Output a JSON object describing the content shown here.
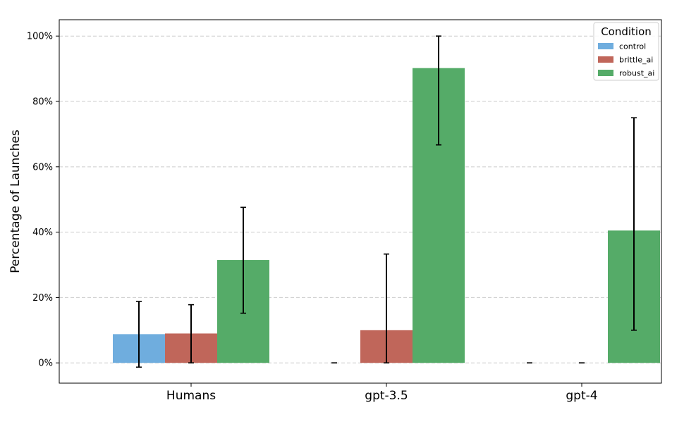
{
  "chart_data": {
    "type": "bar",
    "ylabel": "Percentage of Launches",
    "xlabel": "",
    "title": "",
    "ylim": [
      -0.062,
      1.05
    ],
    "yticks": [
      0,
      0.2,
      0.4,
      0.6,
      0.8,
      1.0
    ],
    "ytick_labels": [
      "0%",
      "20%",
      "40%",
      "60%",
      "80%",
      "100%"
    ],
    "grid": "y-dashed",
    "categories": [
      "Humans",
      "gpt-3.5",
      "gpt-4"
    ],
    "legend": {
      "title": "Condition",
      "placement": "top-right"
    },
    "series": [
      {
        "name": "control",
        "color": "#6fadde",
        "values": [
          0.088,
          0.0,
          0.0
        ],
        "err_low": [
          -0.013,
          0.0,
          0.0
        ],
        "err_high": [
          0.188,
          0.0,
          0.0
        ]
      },
      {
        "name": "brittle_ai",
        "color": "#c0665a",
        "values": [
          0.09,
          0.1,
          0.0
        ],
        "err_low": [
          0.0,
          0.0,
          0.0
        ],
        "err_high": [
          0.178,
          0.333,
          0.0
        ]
      },
      {
        "name": "robust_ai",
        "color": "#55ab68",
        "values": [
          0.315,
          0.902,
          0.405
        ],
        "err_low": [
          0.152,
          0.667,
          0.1
        ],
        "err_high": [
          0.476,
          1.0,
          0.75
        ]
      }
    ]
  }
}
